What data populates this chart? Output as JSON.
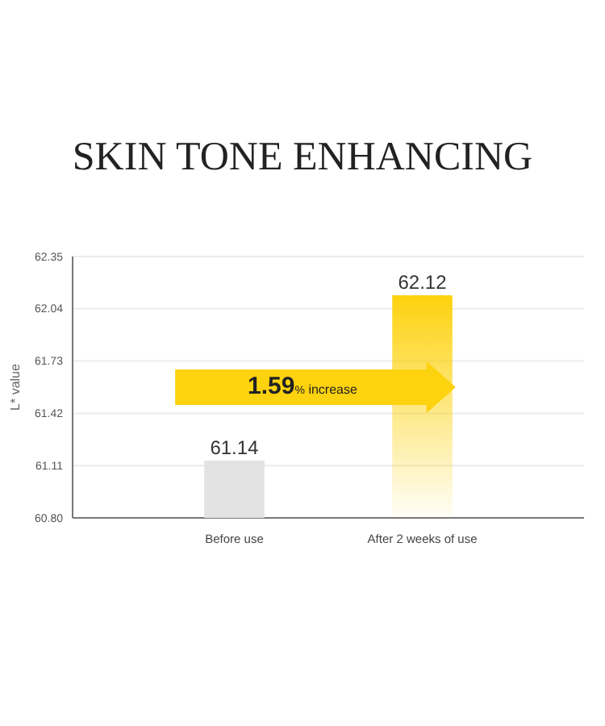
{
  "chart_data": {
    "type": "bar",
    "title": "SKIN TONE ENHANCING",
    "ylabel": "L* value",
    "categories": [
      "Before use",
      "After 2 weeks of use"
    ],
    "values": [
      61.14,
      62.12
    ],
    "colors": [
      "#e3e3e3",
      "#fdd20e"
    ],
    "ylim": [
      60.8,
      62.35
    ],
    "yticks": [
      {
        "value": 60.8,
        "label": "60.80"
      },
      61.11,
      61.42,
      61.73,
      62.04,
      62.35
    ],
    "grid": "y",
    "data_labels": true,
    "annotations": [
      "1.59% increase"
    ]
  }
}
